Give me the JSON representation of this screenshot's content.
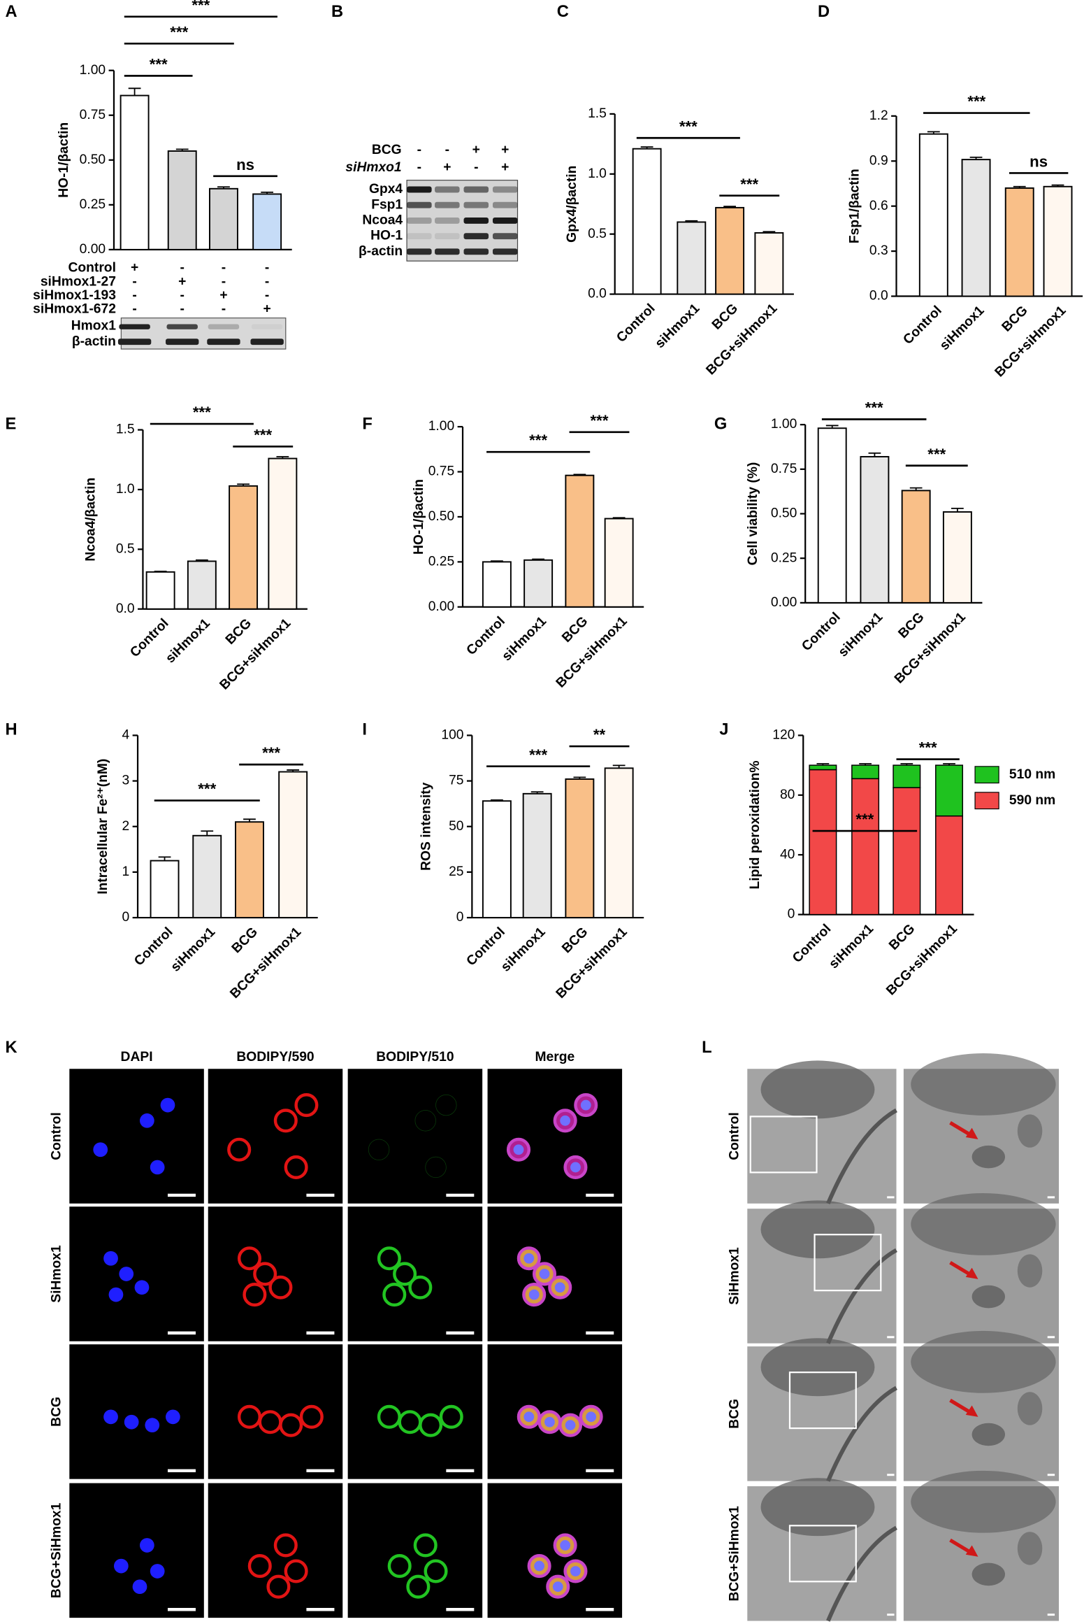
{
  "chart_data": [
    {
      "type": "bar",
      "panel": "A",
      "ylabel": "HO-1/βactin",
      "conditions": [
        {
          "name": "Control",
          "signs": [
            "+",
            "-",
            "-",
            "-"
          ]
        },
        {
          "name": "siHmox1-27",
          "signs": [
            "-",
            "+",
            "-",
            "-"
          ]
        },
        {
          "name": "siHmox1-193",
          "signs": [
            "-",
            "-",
            "+",
            "-"
          ]
        },
        {
          "name": "siHmox1-672",
          "signs": [
            "-",
            "-",
            "-",
            "+"
          ]
        }
      ],
      "blots": [
        "Hmox1",
        "β-actin"
      ],
      "values": [
        0.86,
        0.55,
        0.34,
        0.31
      ],
      "errors": [
        0.04,
        0.01,
        0.01,
        0.01
      ],
      "colors": [
        "#ffffff",
        "#d4d4d4",
        "#d4d4d4",
        "#c6dcf7"
      ],
      "ylim": [
        0,
        1
      ],
      "yticks": [
        {
          "value": 0,
          "label": "0.00"
        },
        0.25,
        {
          "value": 0.5,
          "label": "0.50"
        },
        0.75,
        {
          "value": 1,
          "label": "1.00"
        }
      ],
      "comparisons": [
        {
          "from": 0,
          "to": 1,
          "label": "***",
          "y": 0.97
        },
        {
          "from": 0,
          "to": 2,
          "label": "***",
          "y": 1.15
        },
        {
          "from": 0,
          "to": 3,
          "label": "***",
          "y": 1.3
        },
        {
          "from": 2,
          "to": 3,
          "label": "ns",
          "y": 0.41
        }
      ]
    },
    {
      "type": "bar",
      "panel": "C",
      "ylabel": "Gpx4/βactin",
      "categories": [
        "Control",
        "siHmox1",
        "BCG",
        "BCG+siHmox1"
      ],
      "values": [
        1.21,
        0.6,
        0.72,
        0.51
      ],
      "errors": [
        0.015,
        0.01,
        0.01,
        0.01
      ],
      "colors": [
        "#ffffff",
        "#e6e6e6",
        "#f9bf88",
        "#fff7ef"
      ],
      "ylim": [
        0,
        1.5
      ],
      "yticks": [
        {
          "value": 0,
          "label": "0.0"
        },
        0.5,
        {
          "value": 1,
          "label": "1.0"
        },
        1.5
      ],
      "comparisons": [
        {
          "from": 0,
          "to": 2,
          "label": "***",
          "y": 1.3
        },
        {
          "from": 2,
          "to": 3,
          "label": "***",
          "y": 0.82
        }
      ]
    },
    {
      "type": "bar",
      "panel": "D",
      "ylabel": "Fsp1/βactin",
      "categories": [
        "Control",
        "siHmox1",
        "BCG",
        "BCG+siHmox1"
      ],
      "values": [
        1.08,
        0.91,
        0.72,
        0.73
      ],
      "errors": [
        0.015,
        0.015,
        0.01,
        0.01
      ],
      "colors": [
        "#ffffff",
        "#e6e6e6",
        "#f9bf88",
        "#fff7ef"
      ],
      "ylim": [
        0,
        1.2
      ],
      "yticks": [
        {
          "value": 0,
          "label": "0.0"
        },
        0.3,
        0.6,
        0.9,
        1.2
      ],
      "comparisons": [
        {
          "from": 0,
          "to": 2,
          "label": "***",
          "y": 1.22
        },
        {
          "from": 2,
          "to": 3,
          "label": "ns",
          "y": 0.82
        }
      ]
    },
    {
      "type": "bar",
      "panel": "E",
      "ylabel": "Ncoa4/βactin",
      "categories": [
        "Control",
        "siHmox1",
        "BCG",
        "BCG+siHmox1"
      ],
      "values": [
        0.31,
        0.4,
        1.03,
        1.26
      ],
      "errors": [
        0.005,
        0.01,
        0.015,
        0.015
      ],
      "colors": [
        "#ffffff",
        "#e6e6e6",
        "#f9bf88",
        "#fff7ef"
      ],
      "ylim": [
        0,
        1.5
      ],
      "yticks": [
        {
          "value": 0,
          "label": "0.0"
        },
        0.5,
        {
          "value": 1,
          "label": "1.0"
        },
        1.5
      ],
      "comparisons": [
        {
          "from": 0,
          "to": 2,
          "label": "***",
          "y": 1.55
        },
        {
          "from": 2,
          "to": 3,
          "label": "***",
          "y": 1.36
        }
      ]
    },
    {
      "type": "bar",
      "panel": "F",
      "ylabel": "HO-1/βactin",
      "categories": [
        "Control",
        "siHmox1",
        "BCG",
        "BCG+siHmox1"
      ],
      "values": [
        0.25,
        0.26,
        0.73,
        0.49
      ],
      "errors": [
        0.005,
        0.005,
        0.005,
        0.005
      ],
      "colors": [
        "#ffffff",
        "#e6e6e6",
        "#f9bf88",
        "#fff7ef"
      ],
      "ylim": [
        0,
        1
      ],
      "yticks": [
        {
          "value": 0,
          "label": "0.00"
        },
        0.25,
        {
          "value": 0.5,
          "label": "0.50"
        },
        0.75,
        {
          "value": 1,
          "label": "1.00"
        }
      ],
      "comparisons": [
        {
          "from": 0,
          "to": 2,
          "label": "***",
          "y": 0.86
        },
        {
          "from": 2,
          "to": 3,
          "label": "***",
          "y": 0.97
        }
      ]
    },
    {
      "type": "bar",
      "panel": "G",
      "ylabel": "Cell viability (%)",
      "categories": [
        "Control",
        "siHmox1",
        "BCG",
        "BCG+siHmox1"
      ],
      "values": [
        0.98,
        0.82,
        0.63,
        0.51
      ],
      "errors": [
        0.015,
        0.02,
        0.015,
        0.02
      ],
      "colors": [
        "#ffffff",
        "#e6e6e6",
        "#f9bf88",
        "#fff7ef"
      ],
      "ylim": [
        0,
        1
      ],
      "yticks": [
        {
          "value": 0,
          "label": "0.00"
        },
        0.25,
        {
          "value": 0.5,
          "label": "0.50"
        },
        0.75,
        {
          "value": 1,
          "label": "1.00"
        }
      ],
      "comparisons": [
        {
          "from": 0,
          "to": 2,
          "label": "***",
          "y": 1.03
        },
        {
          "from": 2,
          "to": 3,
          "label": "***",
          "y": 0.77
        }
      ]
    },
    {
      "type": "bar",
      "panel": "H",
      "ylabel": "Intracellular Fe²⁺(nM)",
      "categories": [
        "Control",
        "siHmox1",
        "BCG",
        "BCG+siHmox1"
      ],
      "values": [
        1.25,
        1.8,
        2.1,
        3.2
      ],
      "errors": [
        0.08,
        0.1,
        0.06,
        0.04
      ],
      "colors": [
        "#ffffff",
        "#e6e6e6",
        "#f9bf88",
        "#fff7ef"
      ],
      "ylim": [
        0,
        4
      ],
      "yticks": [
        0,
        1,
        2,
        3,
        4
      ],
      "comparisons": [
        {
          "from": 0,
          "to": 2,
          "label": "***",
          "y": 2.57
        },
        {
          "from": 2,
          "to": 3,
          "label": "***",
          "y": 3.36
        }
      ]
    },
    {
      "type": "bar",
      "panel": "I",
      "ylabel": "ROS intensity",
      "categories": [
        "Control",
        "siHmox1",
        "BCG",
        "BCG+siHmox1"
      ],
      "values": [
        64,
        68,
        76,
        82
      ],
      "errors": [
        0.5,
        1,
        1,
        1.5
      ],
      "colors": [
        "#ffffff",
        "#e6e6e6",
        "#f9bf88",
        "#fff7ef"
      ],
      "ylim": [
        0,
        100
      ],
      "yticks": [
        0,
        25,
        50,
        75,
        100
      ],
      "comparisons": [
        {
          "from": 0,
          "to": 2,
          "label": "***",
          "y": 83
        },
        {
          "from": 2,
          "to": 3,
          "label": "**",
          "y": 94
        }
      ]
    },
    {
      "type": "stacked_bar",
      "panel": "J",
      "ylabel": "Lipid peroxidation%",
      "categories": [
        "Control",
        "siHmox1",
        "BCG",
        "BCG+siHmox1"
      ],
      "series": [
        {
          "name": "590 nm",
          "color": "#f24848",
          "values": [
            97,
            91,
            85,
            66
          ],
          "errors": [
            1,
            1,
            1,
            1
          ]
        },
        {
          "name": "510 nm",
          "color": "#1fc21f",
          "values": [
            3,
            9,
            15,
            34
          ],
          "errors": [
            1,
            1,
            1,
            1
          ]
        }
      ],
      "ylim": [
        0,
        120
      ],
      "yticks": [
        0,
        40,
        80,
        120
      ],
      "comparisons": [
        {
          "from": 0,
          "to": 2,
          "label": "***",
          "y": 56
        },
        {
          "from": 2,
          "to": 3,
          "label": "***",
          "y": 104
        }
      ]
    }
  ],
  "panels": {
    "B": {
      "letter": "B",
      "conditions": [
        {
          "name": "BCG",
          "signs": [
            "-",
            "-",
            "+",
            "+"
          ]
        },
        {
          "name": "siHmxo1",
          "signs": [
            "-",
            "+",
            "-",
            "+"
          ]
        }
      ],
      "blots": [
        "Gpx4",
        "Fsp1",
        "Ncoa4",
        "HO-1",
        "β-actin"
      ]
    },
    "K": {
      "letter": "K",
      "columns": [
        "DAPI",
        "BODIPY/590",
        "BODIPY/510",
        "Merge"
      ],
      "rows": [
        "Control",
        "SiHmox1",
        "BCG",
        "BCG+SiHmox1"
      ]
    },
    "L": {
      "letter": "L",
      "rows": [
        "Control",
        "SiHmox1",
        "BCG",
        "BCG+SiHmox1"
      ]
    }
  }
}
